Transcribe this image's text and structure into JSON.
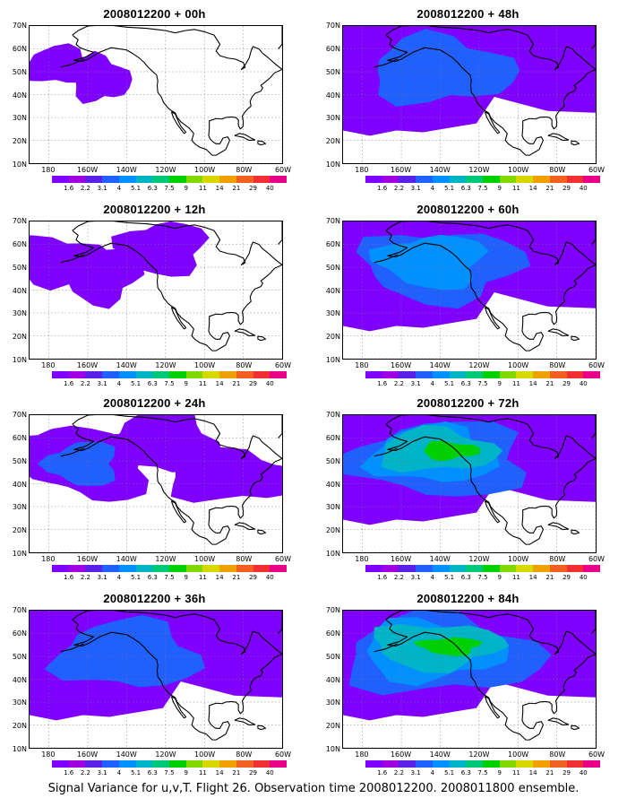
{
  "panels": [
    {
      "title": "2008012200 + 00h",
      "level": 1
    },
    {
      "title": "2008012200 + 48h",
      "level": 4
    },
    {
      "title": "2008012200 + 12h",
      "level": 2
    },
    {
      "title": "2008012200 + 60h",
      "level": 5
    },
    {
      "title": "2008012200 + 24h",
      "level": 3
    },
    {
      "title": "2008012200 + 72h",
      "level": 6
    },
    {
      "title": "2008012200 + 36h",
      "level": 4
    },
    {
      "title": "2008012200 + 84h",
      "level": 7
    }
  ],
  "lat_labels": [
    "70N",
    "60N",
    "50N",
    "40N",
    "30N",
    "20N",
    "10N"
  ],
  "lon_labels": [
    "180",
    "160W",
    "140W",
    "120W",
    "100W",
    "80W",
    "60W"
  ],
  "colorbar": {
    "labels": [
      "1.6",
      "2.2",
      "3.1",
      "4",
      "5.1",
      "6.3",
      "7.5",
      "9",
      "11",
      "14",
      "21",
      "29",
      "40"
    ],
    "colors": [
      "#7f00ff",
      "#a000e0",
      "#5a20e8",
      "#2060ff",
      "#0090ff",
      "#00b4c8",
      "#00c878",
      "#00d000",
      "#80d800",
      "#d8d800",
      "#f0a000",
      "#f06020",
      "#f03030",
      "#e8008a"
    ]
  },
  "footer": "Signal Variance for u,v,T. Flight 26. Observation time 2008012200. 2008011800 ensemble."
}
